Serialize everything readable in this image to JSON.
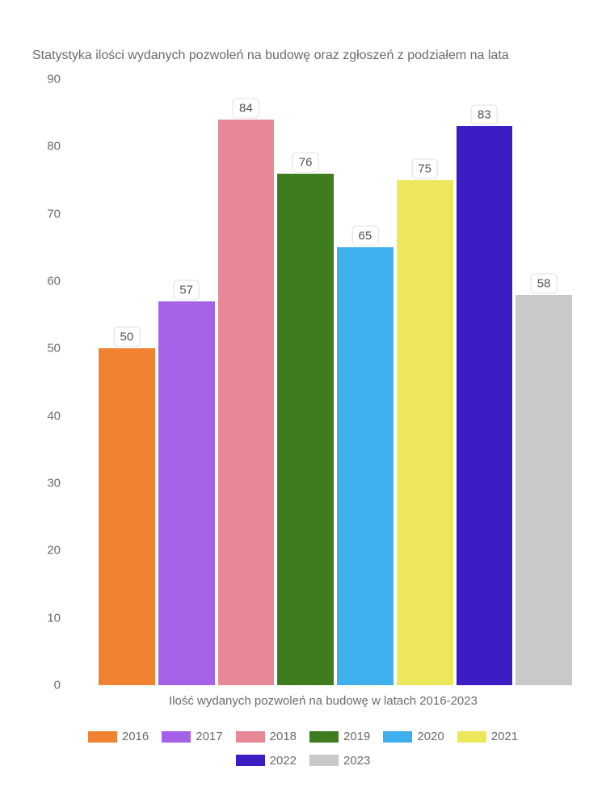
{
  "chart": {
    "type": "bar",
    "title": "Statystyka ilości wydanych pozwoleń na budowę oraz zgłoszeń z podziałem na lata",
    "x_label": "Ilość wydanych pozwoleń na budowę w latach 2016-2023",
    "y_max": 90,
    "y_ticks": [
      0,
      10,
      20,
      30,
      40,
      50,
      60,
      70,
      80,
      90
    ],
    "background_color": "#ffffff",
    "text_color": "#6b6b6b",
    "title_fontsize": 16,
    "tick_fontsize": 15,
    "label_fontsize": 15,
    "label_box_border": "#e0e0e0",
    "label_box_radius": 5,
    "bars": [
      {
        "year": "2016",
        "value": 50,
        "color": "#f08232"
      },
      {
        "year": "2017",
        "value": 57,
        "color": "#a562e6"
      },
      {
        "year": "2018",
        "value": 84,
        "color": "#e68896"
      },
      {
        "year": "2019",
        "value": 76,
        "color": "#3e7c1f"
      },
      {
        "year": "2020",
        "value": 65,
        "color": "#3fafed"
      },
      {
        "year": "2021",
        "value": 75,
        "color": "#ede75c"
      },
      {
        "year": "2022",
        "value": 83,
        "color": "#3d1cc4"
      },
      {
        "year": "2023",
        "value": 58,
        "color": "#c9c9c9"
      }
    ]
  }
}
